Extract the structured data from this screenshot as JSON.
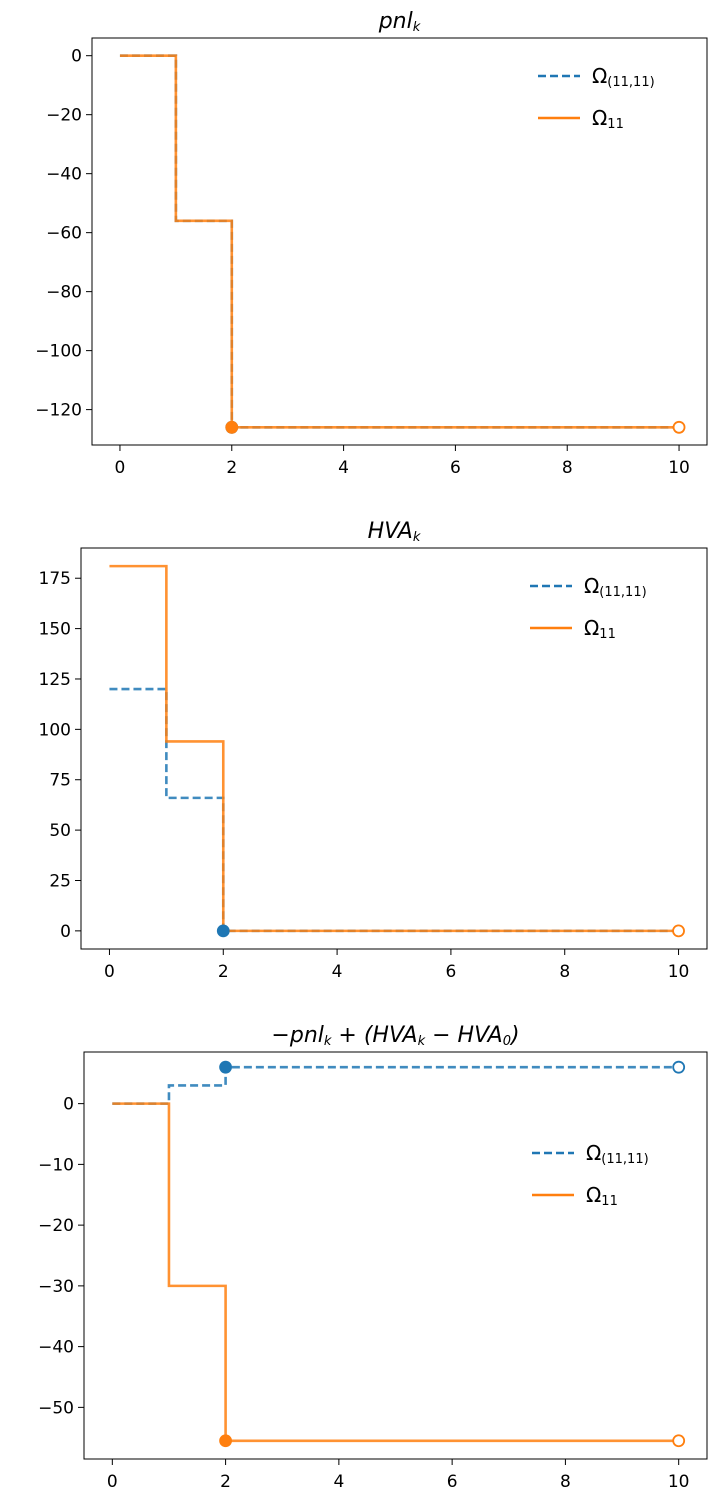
{
  "colors": {
    "series_dashed": "#1f77b4",
    "series_solid": "#ff7f0e",
    "axes": "#000000"
  },
  "chart_data": [
    {
      "type": "line",
      "step": "post",
      "title": "pnl",
      "title_sub": "k",
      "xlim": [
        -0.5,
        10.5
      ],
      "ylim": [
        -132,
        6
      ],
      "xticks": [
        0,
        2,
        4,
        6,
        8,
        10
      ],
      "yticks": [
        0,
        -20,
        -40,
        -60,
        -80,
        -100,
        -120
      ],
      "legend_position": "upper right",
      "series": [
        {
          "name": "Ω",
          "name_sub": "(11,11)",
          "style": "dashed",
          "color": "#1f77b4",
          "x": [
            0,
            1,
            2,
            10
          ],
          "y": [
            0,
            -56,
            -126,
            -126
          ]
        },
        {
          "name": "Ω",
          "name_sub": "11",
          "style": "solid",
          "color": "#ff7f0e",
          "x": [
            0,
            1,
            2,
            10
          ],
          "y": [
            0,
            -56,
            -126,
            -126
          ]
        }
      ],
      "markers": [
        {
          "series": 0,
          "x": 2,
          "y": -126,
          "filled": true
        },
        {
          "series": 1,
          "x": 2,
          "y": -126,
          "filled": true
        },
        {
          "series": 1,
          "x": 10,
          "y": -126,
          "filled": false
        }
      ]
    },
    {
      "type": "line",
      "step": "post",
      "title": "HVA",
      "title_sub": "k",
      "xlim": [
        -0.5,
        10.5
      ],
      "ylim": [
        -9,
        190
      ],
      "xticks": [
        0,
        2,
        4,
        6,
        8,
        10
      ],
      "yticks": [
        0,
        25,
        50,
        75,
        100,
        125,
        150,
        175
      ],
      "legend_position": "upper right",
      "series": [
        {
          "name": "Ω",
          "name_sub": "(11,11)",
          "style": "dashed",
          "color": "#1f77b4",
          "x": [
            0,
            1,
            2,
            10
          ],
          "y": [
            120,
            66,
            0,
            0
          ]
        },
        {
          "name": "Ω",
          "name_sub": "11",
          "style": "solid",
          "color": "#ff7f0e",
          "x": [
            0,
            1,
            2,
            10
          ],
          "y": [
            181,
            94,
            0,
            0
          ]
        }
      ],
      "markers": [
        {
          "series": 0,
          "x": 2,
          "y": 0,
          "filled": true
        },
        {
          "series": 1,
          "x": 10,
          "y": 0,
          "filled": false
        }
      ]
    },
    {
      "type": "line",
      "step": "post",
      "title": "−pnl",
      "title_sub": "k",
      "title_mid": " + (HVA",
      "title_sub2": "k",
      "title_mid2": " − HVA",
      "title_sub3": "0",
      "title_end": ")",
      "xlim": [
        -0.5,
        10.5
      ],
      "ylim": [
        -58.5,
        8.5
      ],
      "xticks": [
        0,
        2,
        4,
        6,
        8,
        10
      ],
      "yticks": [
        0,
        -10,
        -20,
        -30,
        -40,
        -50
      ],
      "legend_position": "center right",
      "series": [
        {
          "name": "Ω",
          "name_sub": "(11,11)",
          "style": "dashed",
          "color": "#1f77b4",
          "x": [
            0,
            1,
            2,
            10
          ],
          "y": [
            0,
            3,
            6,
            6
          ]
        },
        {
          "name": "Ω",
          "name_sub": "11",
          "style": "solid",
          "color": "#ff7f0e",
          "x": [
            0,
            1,
            2,
            10
          ],
          "y": [
            0,
            -30,
            -55.5,
            -55.5
          ]
        }
      ],
      "markers": [
        {
          "series": 0,
          "x": 2,
          "y": 6,
          "filled": true
        },
        {
          "series": 0,
          "x": 10,
          "y": 6,
          "filled": false
        },
        {
          "series": 1,
          "x": 2,
          "y": -55.5,
          "filled": true
        },
        {
          "series": 1,
          "x": 10,
          "y": -55.5,
          "filled": false
        }
      ]
    }
  ]
}
